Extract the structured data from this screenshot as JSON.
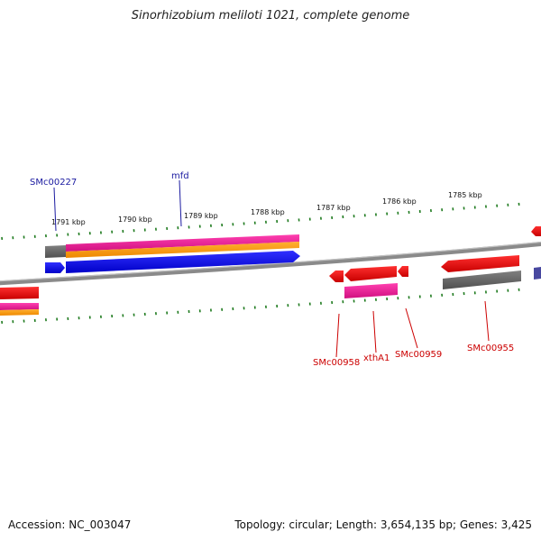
{
  "title": "Sinorhizobium meliloti 1021, complete genome",
  "footer": {
    "accession": "Accession: NC_003047",
    "summary": "Topology: circular; Length: 3,654,135 bp; Genes: 3,425"
  },
  "scale_labels": [
    "1791 kbp",
    "1790 kbp",
    "1789 kbp",
    "1788 kbp",
    "1787 kbp",
    "1786 kbp",
    "1785 kbp"
  ],
  "genes": {
    "forward": [
      "SMc00227",
      "mfd"
    ],
    "reverse": [
      "SMc00958",
      "xthA1",
      "SMc00959",
      "SMc00955"
    ]
  },
  "colors": {
    "forward_label": "#1a1aa0",
    "reverse_label": "#cc0000",
    "tick": "#1e7a1e",
    "backbone": "#8a8a8a",
    "blue_cds": "#0000ee",
    "red_cds": "#ee0000",
    "pink_feature": "#e6198c",
    "orange_feature": "#ff9900",
    "gray_gene": "#666666"
  }
}
